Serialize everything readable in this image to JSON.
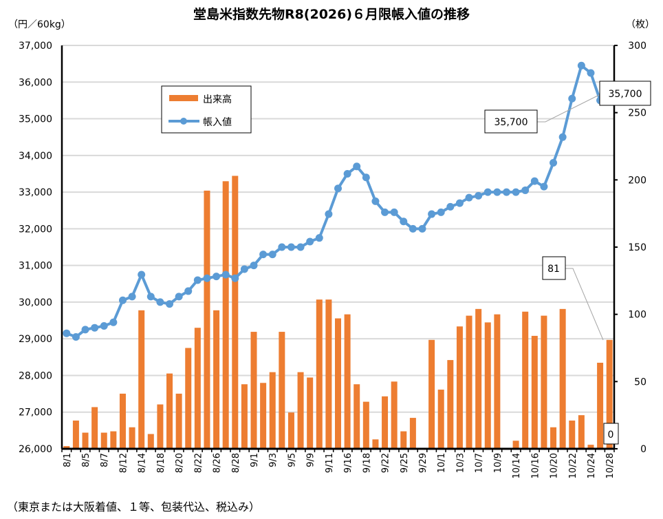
{
  "chart_data": {
    "type": "bar+line",
    "title": "堂島米指数先物R8(2026)６月限帳入値の推移",
    "left_axis_label": "（円／60kg）",
    "right_axis_label": "（枚）",
    "footnote": "（東京または大阪着値、１等、包装代込、税込み）",
    "left_ylim": [
      26000,
      37000
    ],
    "right_ylim": [
      0,
      300
    ],
    "left_ticks": [
      "26,000",
      "27,000",
      "28,000",
      "29,000",
      "30,000",
      "31,000",
      "32,000",
      "33,000",
      "34,000",
      "35,000",
      "36,000",
      "37,000"
    ],
    "right_ticks": [
      "0",
      "50",
      "100",
      "150",
      "200",
      "250",
      "300"
    ],
    "grid": true,
    "legend_position": "upper-left-inside",
    "categories": [
      "8/1",
      "",
      "8/5",
      "",
      "8/7",
      "",
      "8/12",
      "",
      "8/14",
      "",
      "8/18",
      "",
      "8/20",
      "",
      "8/22",
      "",
      "8/26",
      "",
      "8/28",
      "",
      "9/1",
      "",
      "9/3",
      "",
      "9/5",
      "",
      "9/9",
      "",
      "9/11",
      "",
      "9/16",
      "",
      "9/18",
      "",
      "9/22",
      "",
      "9/25",
      "",
      "9/29",
      "",
      "10/1",
      "",
      "10/3",
      "",
      "10/7",
      "",
      "10/9",
      "",
      "10/14",
      "",
      "10/16",
      "",
      "10/20",
      "",
      "10/22",
      "",
      "10/24",
      "",
      "10/28"
    ],
    "series": [
      {
        "name": "出来高",
        "type": "bar",
        "axis": "right",
        "color": "#ED7D31",
        "values": [
          2,
          21,
          12,
          31,
          12,
          13,
          41,
          16,
          103,
          11,
          33,
          56,
          41,
          75,
          90,
          192,
          103,
          199,
          203,
          48,
          87,
          49,
          57,
          87,
          27,
          57,
          53,
          111,
          111,
          97,
          100,
          48,
          35,
          7,
          39,
          50,
          13,
          23,
          0,
          81,
          44,
          66,
          91,
          99,
          104,
          94,
          100,
          0,
          6,
          102,
          84,
          99,
          16,
          104,
          21,
          25,
          3,
          64,
          81
        ]
      },
      {
        "name": "帳入値",
        "type": "line",
        "axis": "left",
        "color": "#5B9BD5",
        "values": [
          29150,
          29050,
          29250,
          29300,
          29350,
          29450,
          30050,
          30150,
          30750,
          30150,
          30000,
          29950,
          30150,
          30300,
          30600,
          30650,
          30700,
          30750,
          30650,
          30900,
          31000,
          31300,
          31300,
          31500,
          31500,
          31500,
          31650,
          31750,
          32400,
          33100,
          33500,
          33700,
          33400,
          32750,
          32450,
          32450,
          32200,
          32000,
          32000,
          32400,
          32450,
          32600,
          32700,
          32850,
          32900,
          33000,
          33000,
          33000,
          33000,
          33050,
          33300,
          33150,
          33800,
          34500,
          35550,
          36450,
          36250,
          35500,
          35700
        ]
      }
    ],
    "annotations": [
      "35,700",
      "35,700",
      "81",
      "0"
    ]
  }
}
